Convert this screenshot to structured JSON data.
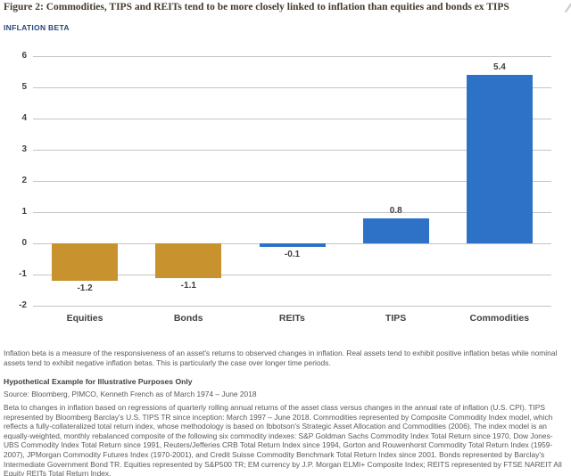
{
  "figure": {
    "title": "Figure 2: Commodities, TIPS and REITs tend to be more closely linked to inflation than equities and bonds ex TIPS",
    "axis_label": "INFLATION BETA"
  },
  "chart_data": {
    "type": "bar",
    "categories": [
      "Equities",
      "Bonds",
      "REITs",
      "TIPS",
      "Commodities"
    ],
    "values": [
      -1.2,
      -1.1,
      -0.1,
      0.8,
      5.4
    ],
    "value_labels": [
      "-1.2",
      "-1.1",
      "-0.1",
      "0.8",
      "5.4"
    ],
    "bar_colors": [
      "#C8922F",
      "#C8922F",
      "#2E72C7",
      "#2E72C7",
      "#2E72C7"
    ],
    "title": "Figure 2: Commodities, TIPS and REITs tend to be more closely linked to inflation than equities and bonds ex TIPS",
    "xlabel": "",
    "ylabel": "INFLATION BETA",
    "ylim": [
      -2,
      6
    ],
    "yticks": [
      6,
      5,
      4,
      3,
      2,
      1,
      0,
      -1,
      -2
    ],
    "grid": true,
    "legend": false
  },
  "colors": {
    "gold": "#C8922F",
    "blue": "#2E72C7",
    "gridline": "#C3C4C6",
    "title_text": "#443C2C",
    "axis_title_text": "#28477C",
    "label_text": "#414042",
    "footnote_text": "#58595B"
  },
  "footnotes": {
    "para1": "Inflation beta is a measure of the responsiveness of an asset's returns to observed changes in inflation. Real assets tend to exhibit positive inflation betas while nominal assets tend to exhibit negative inflation betas. This is particularly the case over longer time periods.",
    "hypothetical": "Hypothetical Example for Illustrative Purposes Only",
    "source": "Source: Bloomberg, PIMCO, Kenneth French as of March 1974 – June 2018",
    "methodology": "Beta to changes in inflation based on regressions of quarterly rolling annual returns of the asset class versus changes in the annual rate of inflation (U.S. CPI). TIPS represented by Bloomberg Barclay's U.S. TIPS TR since inception: March 1997 – June 2018. Commodities represented by Composite Commodity Index model, which reflects a fully-collateralized total return index, whose methodology is based on Ibbotson's Strategic Asset Allocation and Commodities (2006). The index model is an equally-weighted, monthly rebalanced composite of the following six commodity indexes: S&P Goldman Sachs Commodity Index Total Return since 1970, Dow Jones-UBS Commodity Index Total Return since 1991, Reuters/Jefferies CRB Total Return Index since 1994, Gorton and Rouwenhorst Commodity Total Return Index (1959-2007), JPMorgan Commodity Futures Index (1970-2001), and Credit Suisse Commodity Benchmark Total Return Index since 2001. Bonds represented by Barclay's Intermediate Government Bond TR. Equities represented by S&P500 TR; EM currency by J.P. Morgan ELMI+ Composite Index; REITS represented by FTSE NAREIT All Equity REITs Total Return Index."
  }
}
